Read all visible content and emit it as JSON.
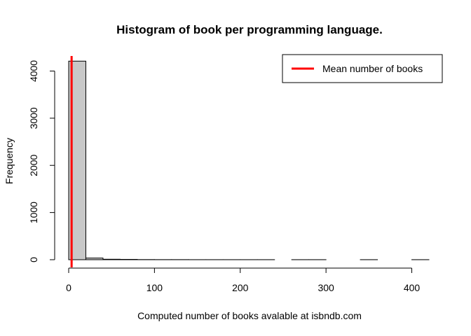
{
  "chart_data": {
    "type": "bar",
    "subtype": "histogram",
    "title": "Histogram of book per programming language.",
    "xlabel": "Computed number of books avalable at isbndb.com",
    "ylabel": "Frequency",
    "xlim": [
      0,
      420
    ],
    "ylim": [
      0,
      4200
    ],
    "x_ticks": [
      0,
      100,
      200,
      300,
      400
    ],
    "y_ticks": [
      0,
      1000,
      2000,
      3000,
      4000
    ],
    "bin_width": 20,
    "bins": [
      {
        "start": 0,
        "end": 20,
        "count": 4210
      },
      {
        "start": 20,
        "end": 40,
        "count": 35
      },
      {
        "start": 40,
        "end": 60,
        "count": 10
      },
      {
        "start": 60,
        "end": 80,
        "count": 7
      },
      {
        "start": 80,
        "end": 100,
        "count": 3
      },
      {
        "start": 100,
        "end": 120,
        "count": 2
      },
      {
        "start": 120,
        "end": 140,
        "count": 2
      },
      {
        "start": 140,
        "end": 160,
        "count": 1
      },
      {
        "start": 160,
        "end": 180,
        "count": 1
      },
      {
        "start": 180,
        "end": 200,
        "count": 1
      },
      {
        "start": 200,
        "end": 220,
        "count": 1
      },
      {
        "start": 220,
        "end": 240,
        "count": 1
      },
      {
        "start": 240,
        "end": 260,
        "count": 0
      },
      {
        "start": 260,
        "end": 280,
        "count": 1
      },
      {
        "start": 280,
        "end": 300,
        "count": 1
      },
      {
        "start": 300,
        "end": 320,
        "count": 0
      },
      {
        "start": 320,
        "end": 340,
        "count": 0
      },
      {
        "start": 340,
        "end": 360,
        "count": 1
      },
      {
        "start": 360,
        "end": 380,
        "count": 0
      },
      {
        "start": 380,
        "end": 400,
        "count": 0
      },
      {
        "start": 400,
        "end": 420,
        "count": 1
      }
    ],
    "mean_line": {
      "value": 3.4,
      "color": "#ff0000"
    },
    "bar_fill": "#c8c8c8",
    "bar_stroke": "#000000",
    "legend": {
      "position": "top-right",
      "entries": [
        {
          "label": "Mean number of books",
          "color": "#ff0000"
        }
      ]
    },
    "grid": false
  }
}
